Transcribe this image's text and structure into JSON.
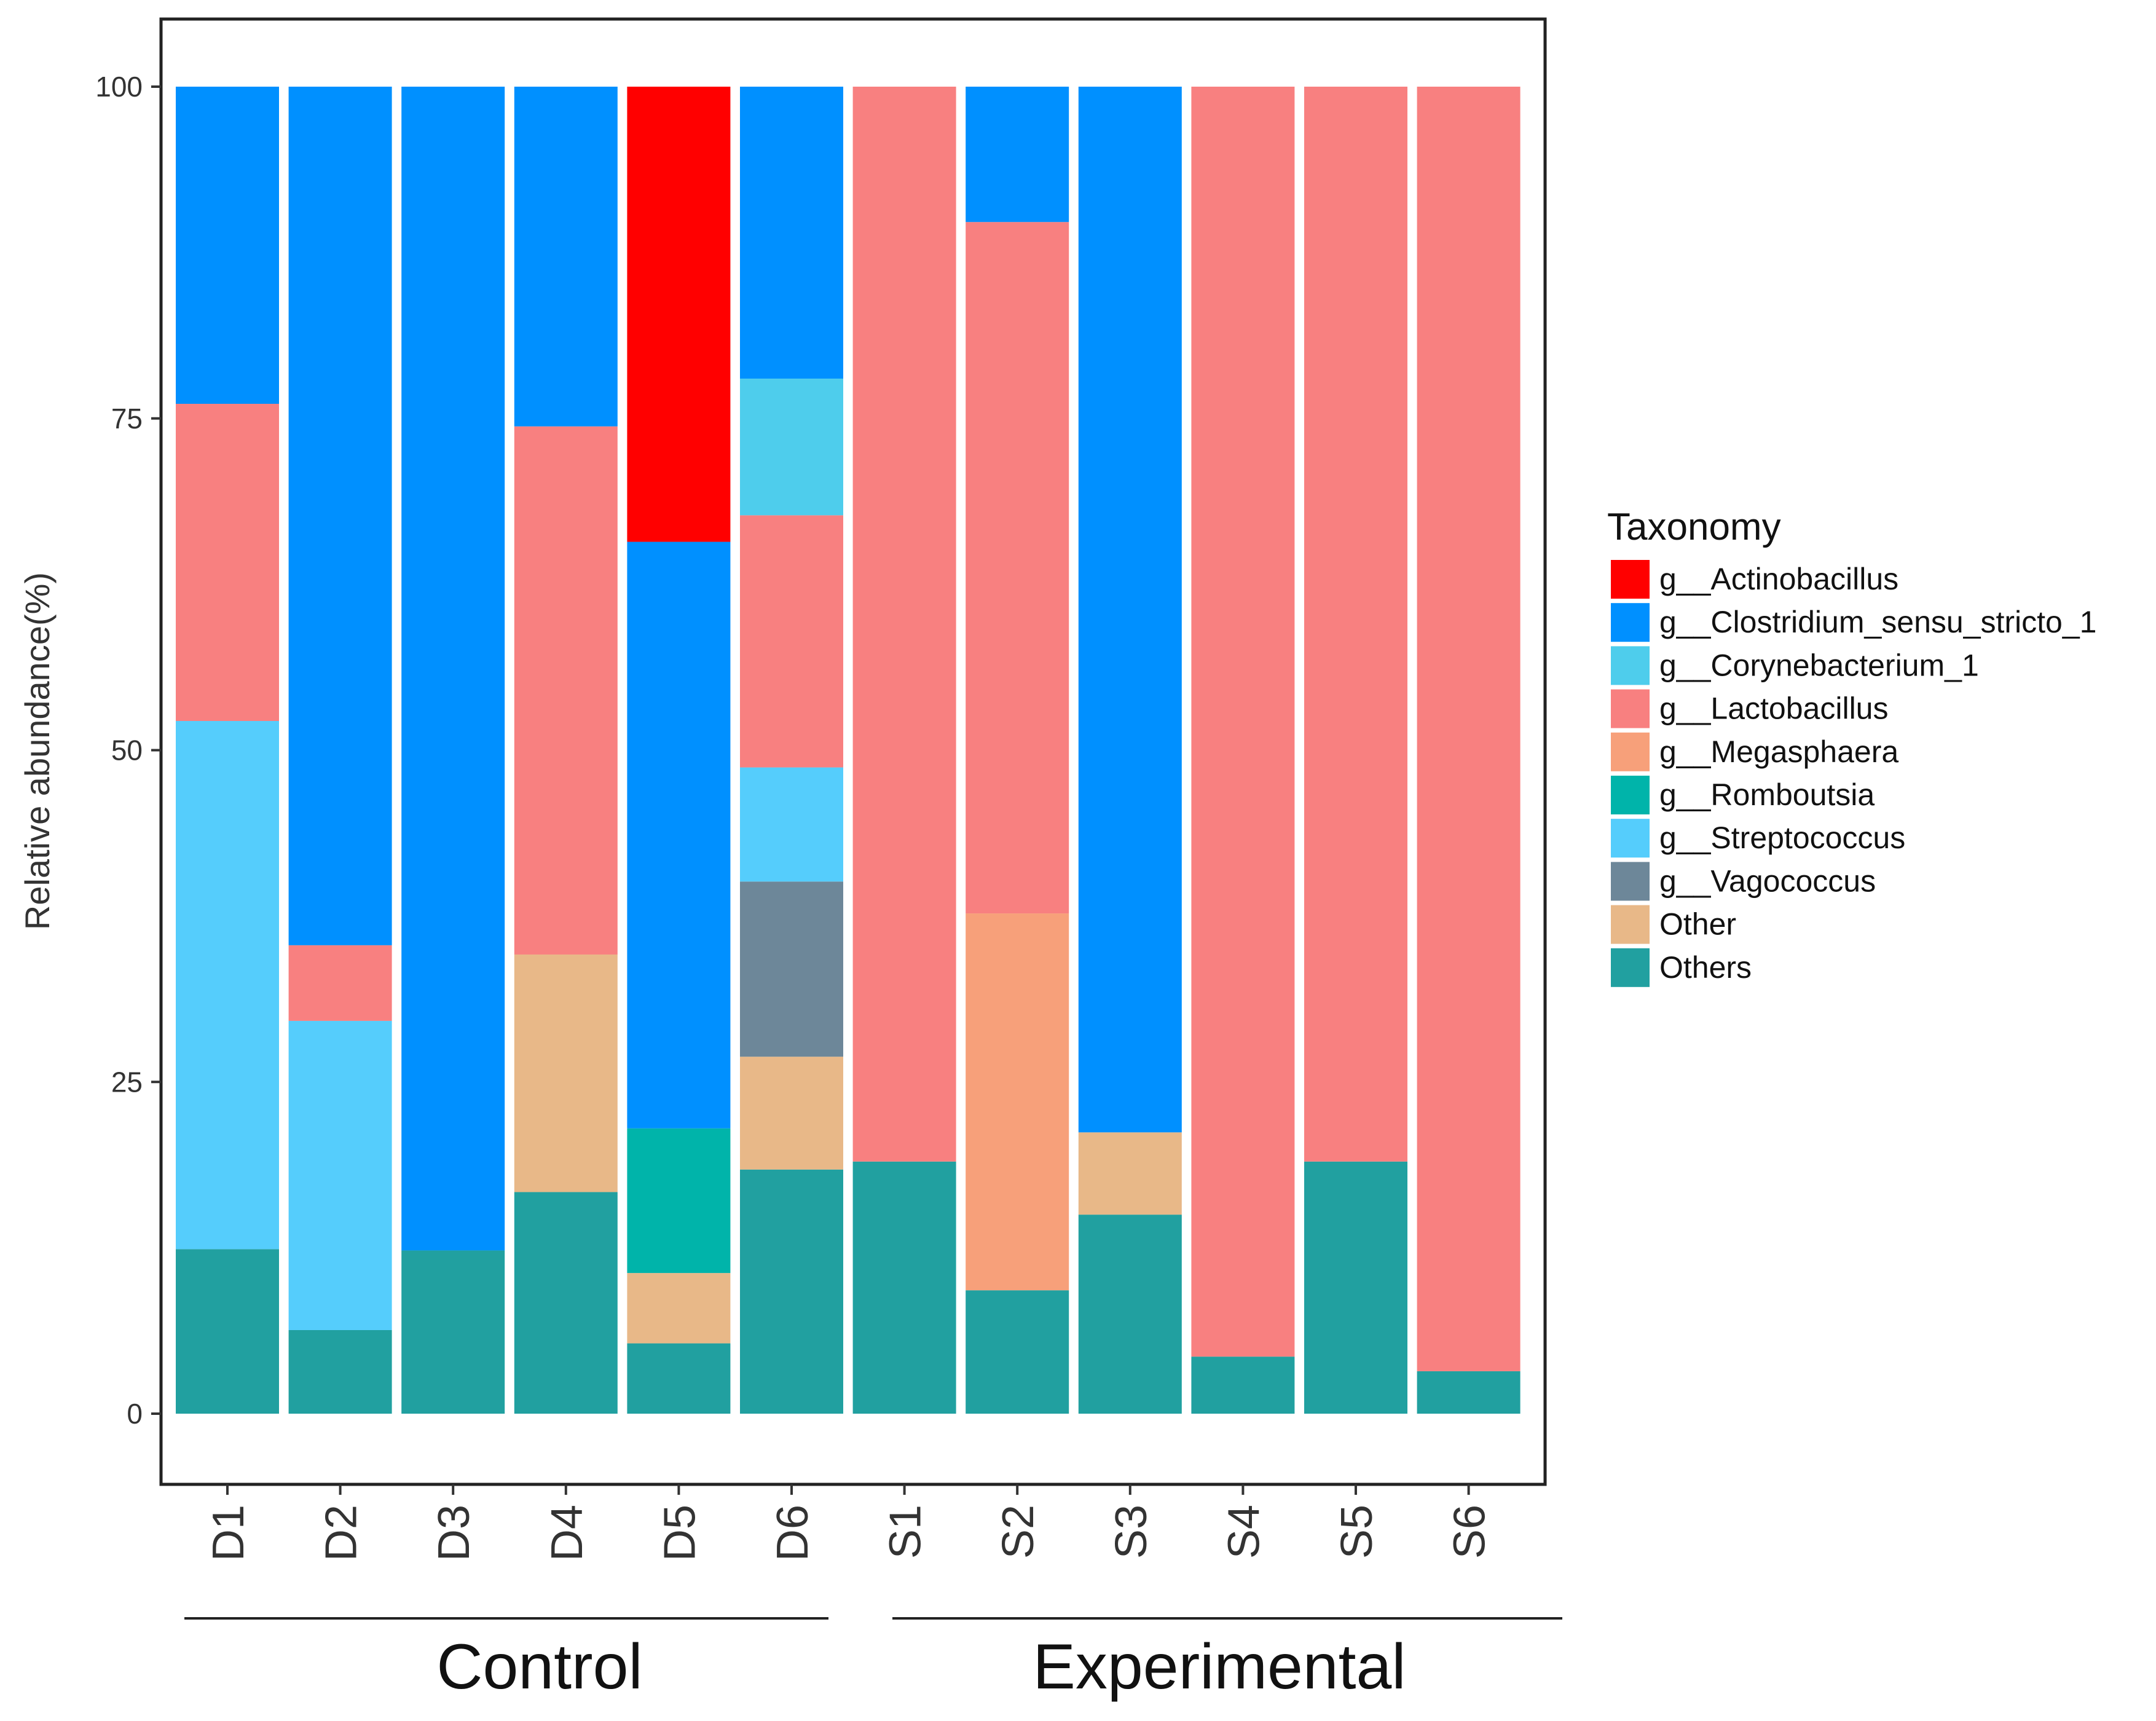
{
  "chart_data": {
    "type": "bar",
    "stacked": true,
    "ylabel": "Relative abundance(%)",
    "ylim": [
      0,
      100
    ],
    "yticks": [
      0,
      25,
      50,
      75,
      100
    ],
    "grid": false,
    "legend_position": "right",
    "legend_title": "Taxonomy",
    "categories": [
      "D1",
      "D2",
      "D3",
      "D4",
      "D5",
      "D6",
      "S1",
      "S2",
      "S3",
      "S4",
      "S5",
      "S6"
    ],
    "groups": [
      {
        "label": "Control",
        "categories": [
          "D1",
          "D2",
          "D3",
          "D4",
          "D5",
          "D6"
        ]
      },
      {
        "label": "Experimental",
        "categories": [
          "S1",
          "S2",
          "S3",
          "S4",
          "S5",
          "S6"
        ]
      }
    ],
    "series": [
      {
        "name": "Others",
        "color": "#21a0a0",
        "values": [
          12.4,
          6.3,
          12.3,
          16.7,
          5.3,
          18.4,
          19.0,
          9.3,
          15.0,
          4.3,
          19.0,
          3.2
        ]
      },
      {
        "name": "Other",
        "color": "#e8b888",
        "values": [
          0,
          0,
          0,
          17.9,
          5.3,
          8.5,
          0,
          0,
          6.2,
          0,
          0,
          0
        ]
      },
      {
        "name": "g__Vagococcus",
        "color": "#6d8799",
        "values": [
          0,
          0,
          0,
          0,
          0,
          13.2,
          0,
          0,
          0,
          0,
          0,
          0
        ]
      },
      {
        "name": "g__Streptococcus",
        "color": "#55cdfc",
        "values": [
          39.8,
          23.3,
          0,
          0,
          0,
          8.6,
          0,
          0,
          0,
          0,
          0,
          0
        ]
      },
      {
        "name": "g__Romboutsia",
        "color": "#00b4aa",
        "values": [
          0,
          0,
          0,
          0,
          10.9,
          0,
          0,
          0,
          0,
          0,
          0,
          0
        ]
      },
      {
        "name": "g__Megasphaera",
        "color": "#f7a07a",
        "values": [
          0,
          0,
          0,
          0,
          0,
          0,
          0,
          28.4,
          0,
          0,
          0,
          0
        ]
      },
      {
        "name": "g__Lactobacillus",
        "color": "#f88080",
        "values": [
          23.9,
          5.7,
          0,
          39.8,
          0,
          19.0,
          81.0,
          52.1,
          0,
          95.7,
          81.0,
          96.8
        ]
      },
      {
        "name": "g__Corynebacterium_1",
        "color": "#4ecdec",
        "values": [
          0,
          0,
          0,
          0,
          0,
          10.3,
          0,
          0,
          0,
          0,
          0,
          0
        ]
      },
      {
        "name": "g__Clostridium_sensu_stricto_1",
        "color": "#0090ff",
        "values": [
          23.9,
          64.7,
          87.7,
          25.6,
          44.2,
          22.0,
          0,
          10.2,
          78.8,
          0,
          0,
          0
        ]
      },
      {
        "name": "g__Actinobacillus",
        "color": "#ff0000",
        "values": [
          0,
          0,
          0,
          0,
          34.3,
          0,
          0,
          0,
          0,
          0,
          0,
          0
        ]
      }
    ],
    "legend_order": [
      "g__Actinobacillus",
      "g__Clostridium_sensu_stricto_1",
      "g__Corynebacterium_1",
      "g__Lactobacillus",
      "g__Megasphaera",
      "g__Romboutsia",
      "g__Streptococcus",
      "g__Vagococcus",
      "Other",
      "Others"
    ]
  }
}
